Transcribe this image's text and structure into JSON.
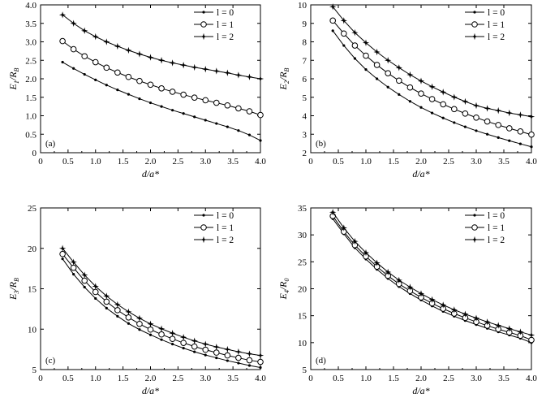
{
  "chart_data": [
    {
      "type": "line",
      "panel_label": "(a)",
      "xlabel": "d/a*",
      "ylabel_main": "E",
      "ylabel_sub": "1",
      "ylabel_den": "R",
      "ylabel_den_sub": "B",
      "xlim": [
        0,
        4.0
      ],
      "ylim": [
        0,
        4.0
      ],
      "xticks": [
        "0",
        "0.5",
        "1.0",
        "1.5",
        "2.0",
        "2.5",
        "3.0",
        "3.5",
        "4.0"
      ],
      "yticks": [
        "0",
        "0.5",
        "1.0",
        "1.5",
        "2.0",
        "2.5",
        "3.0",
        "3.5",
        "4.0"
      ],
      "legend_position": "top-right",
      "x": [
        0.4,
        0.6,
        0.8,
        1.0,
        1.2,
        1.4,
        1.6,
        1.8,
        2.0,
        2.2,
        2.4,
        2.6,
        2.8,
        3.0,
        3.2,
        3.4,
        3.6,
        3.8,
        4.0
      ],
      "series": [
        {
          "name": "l = 0",
          "marker": "dot",
          "values": [
            2.45,
            2.28,
            2.12,
            1.97,
            1.83,
            1.7,
            1.58,
            1.46,
            1.35,
            1.25,
            1.15,
            1.06,
            0.97,
            0.88,
            0.79,
            0.7,
            0.6,
            0.48,
            0.33
          ]
        },
        {
          "name": "l = 1",
          "marker": "circle",
          "values": [
            3.02,
            2.8,
            2.61,
            2.45,
            2.3,
            2.17,
            2.05,
            1.94,
            1.84,
            1.74,
            1.65,
            1.57,
            1.49,
            1.42,
            1.35,
            1.28,
            1.2,
            1.12,
            1.02
          ]
        },
        {
          "name": "l = 2",
          "marker": "star",
          "values": [
            3.73,
            3.5,
            3.3,
            3.14,
            3.0,
            2.88,
            2.77,
            2.67,
            2.58,
            2.5,
            2.43,
            2.37,
            2.31,
            2.26,
            2.21,
            2.16,
            2.1,
            2.05,
            2.0
          ]
        }
      ]
    },
    {
      "type": "line",
      "panel_label": "(b)",
      "xlabel": "d/a*",
      "ylabel_main": "E",
      "ylabel_sub": "2",
      "ylabel_den": "R",
      "ylabel_den_sub": "B",
      "xlim": [
        0,
        4.0
      ],
      "ylim": [
        2,
        10
      ],
      "xticks": [
        "0",
        "0.5",
        "1.0",
        "1.5",
        "2.0",
        "2.5",
        "3.0",
        "3.5",
        "4.0"
      ],
      "yticks": [
        "2",
        "3",
        "4",
        "5",
        "6",
        "7",
        "8",
        "9",
        "10"
      ],
      "legend_position": "top-right",
      "x": [
        0.4,
        0.6,
        0.8,
        1.0,
        1.2,
        1.4,
        1.6,
        1.8,
        2.0,
        2.2,
        2.4,
        2.6,
        2.8,
        3.0,
        3.2,
        3.4,
        3.6,
        3.8,
        4.0
      ],
      "series": [
        {
          "name": "l = 0",
          "marker": "dot",
          "values": [
            8.6,
            7.8,
            7.1,
            6.5,
            6.0,
            5.55,
            5.15,
            4.78,
            4.45,
            4.15,
            3.88,
            3.63,
            3.4,
            3.19,
            3.0,
            2.82,
            2.65,
            2.48,
            2.32
          ]
        },
        {
          "name": "l = 1",
          "marker": "circle",
          "values": [
            9.15,
            8.45,
            7.8,
            7.25,
            6.75,
            6.3,
            5.9,
            5.53,
            5.2,
            4.9,
            4.62,
            4.36,
            4.12,
            3.9,
            3.69,
            3.5,
            3.32,
            3.15,
            2.98
          ]
        },
        {
          "name": "l = 2",
          "marker": "star",
          "values": [
            9.9,
            9.15,
            8.5,
            7.95,
            7.45,
            7.0,
            6.6,
            6.22,
            5.88,
            5.57,
            5.28,
            5.01,
            4.77,
            4.55,
            4.4,
            4.28,
            4.15,
            4.05,
            3.95
          ]
        }
      ]
    },
    {
      "type": "line",
      "panel_label": "(c)",
      "xlabel": "d/a*",
      "ylabel_main": "E",
      "ylabel_sub": "3",
      "ylabel_den": "R",
      "ylabel_den_sub": "B",
      "xlim": [
        0,
        4.0
      ],
      "ylim": [
        5,
        25
      ],
      "xticks": [
        "0",
        "0.5",
        "1.0",
        "1.5",
        "2.0",
        "2.5",
        "3.0",
        "3.5",
        "4.0"
      ],
      "yticks": [
        "5",
        "10",
        "15",
        "20",
        "25"
      ],
      "legend_position": "top-right",
      "x": [
        0.4,
        0.6,
        0.8,
        1.0,
        1.2,
        1.4,
        1.6,
        1.8,
        2.0,
        2.2,
        2.4,
        2.6,
        2.8,
        3.0,
        3.2,
        3.4,
        3.6,
        3.8,
        4.0
      ],
      "series": [
        {
          "name": "l = 0",
          "marker": "dot",
          "values": [
            18.7,
            16.8,
            15.2,
            13.8,
            12.6,
            11.6,
            10.7,
            9.95,
            9.3,
            8.7,
            8.15,
            7.65,
            7.2,
            6.8,
            6.45,
            6.1,
            5.8,
            5.5,
            5.25
          ]
        },
        {
          "name": "l = 1",
          "marker": "circle",
          "values": [
            19.3,
            17.6,
            16.0,
            14.6,
            13.4,
            12.35,
            11.45,
            10.65,
            9.95,
            9.35,
            8.8,
            8.3,
            7.85,
            7.45,
            7.1,
            6.75,
            6.45,
            6.15,
            5.95
          ]
        },
        {
          "name": "l = 2",
          "marker": "star",
          "values": [
            20.0,
            18.3,
            16.7,
            15.3,
            14.1,
            13.05,
            12.15,
            11.35,
            10.65,
            10.05,
            9.5,
            9.0,
            8.55,
            8.15,
            7.8,
            7.5,
            7.2,
            6.95,
            6.75
          ]
        }
      ]
    },
    {
      "type": "line",
      "panel_label": "(d)",
      "xlabel": "d/a*",
      "ylabel_main": "E",
      "ylabel_sub": "4",
      "ylabel_den": "R",
      "ylabel_den_sub": "0",
      "xlim": [
        0,
        4.0
      ],
      "ylim": [
        5,
        35
      ],
      "xticks": [
        "0",
        "0.5",
        "1.0",
        "1.5",
        "2.0",
        "2.5",
        "3.0",
        "3.5",
        "4.0"
      ],
      "yticks": [
        "5",
        "10",
        "15",
        "20",
        "25",
        "30",
        "35"
      ],
      "legend_position": "top-right",
      "x": [
        0.4,
        0.6,
        0.8,
        1.0,
        1.2,
        1.4,
        1.6,
        1.8,
        2.0,
        2.2,
        2.4,
        2.6,
        2.8,
        3.0,
        3.2,
        3.4,
        3.6,
        3.8,
        4.0
      ],
      "series": [
        {
          "name": "l = 0",
          "marker": "dot",
          "values": [
            33.0,
            30.2,
            27.6,
            25.5,
            23.6,
            21.9,
            20.4,
            19.1,
            17.9,
            16.8,
            15.8,
            14.9,
            14.1,
            13.35,
            12.65,
            12.0,
            11.4,
            10.8,
            10.0
          ]
        },
        {
          "name": "l = 1",
          "marker": "circle",
          "values": [
            33.5,
            30.6,
            28.1,
            26.0,
            24.1,
            22.4,
            20.9,
            19.6,
            18.4,
            17.3,
            16.3,
            15.4,
            14.6,
            13.85,
            13.15,
            12.5,
            11.9,
            11.3,
            10.5
          ]
        },
        {
          "name": "l = 2",
          "marker": "star",
          "values": [
            34.2,
            31.3,
            28.8,
            26.7,
            24.8,
            23.1,
            21.6,
            20.3,
            19.1,
            18.0,
            17.0,
            16.1,
            15.3,
            14.55,
            13.85,
            13.2,
            12.6,
            12.0,
            11.4
          ]
        }
      ]
    }
  ]
}
